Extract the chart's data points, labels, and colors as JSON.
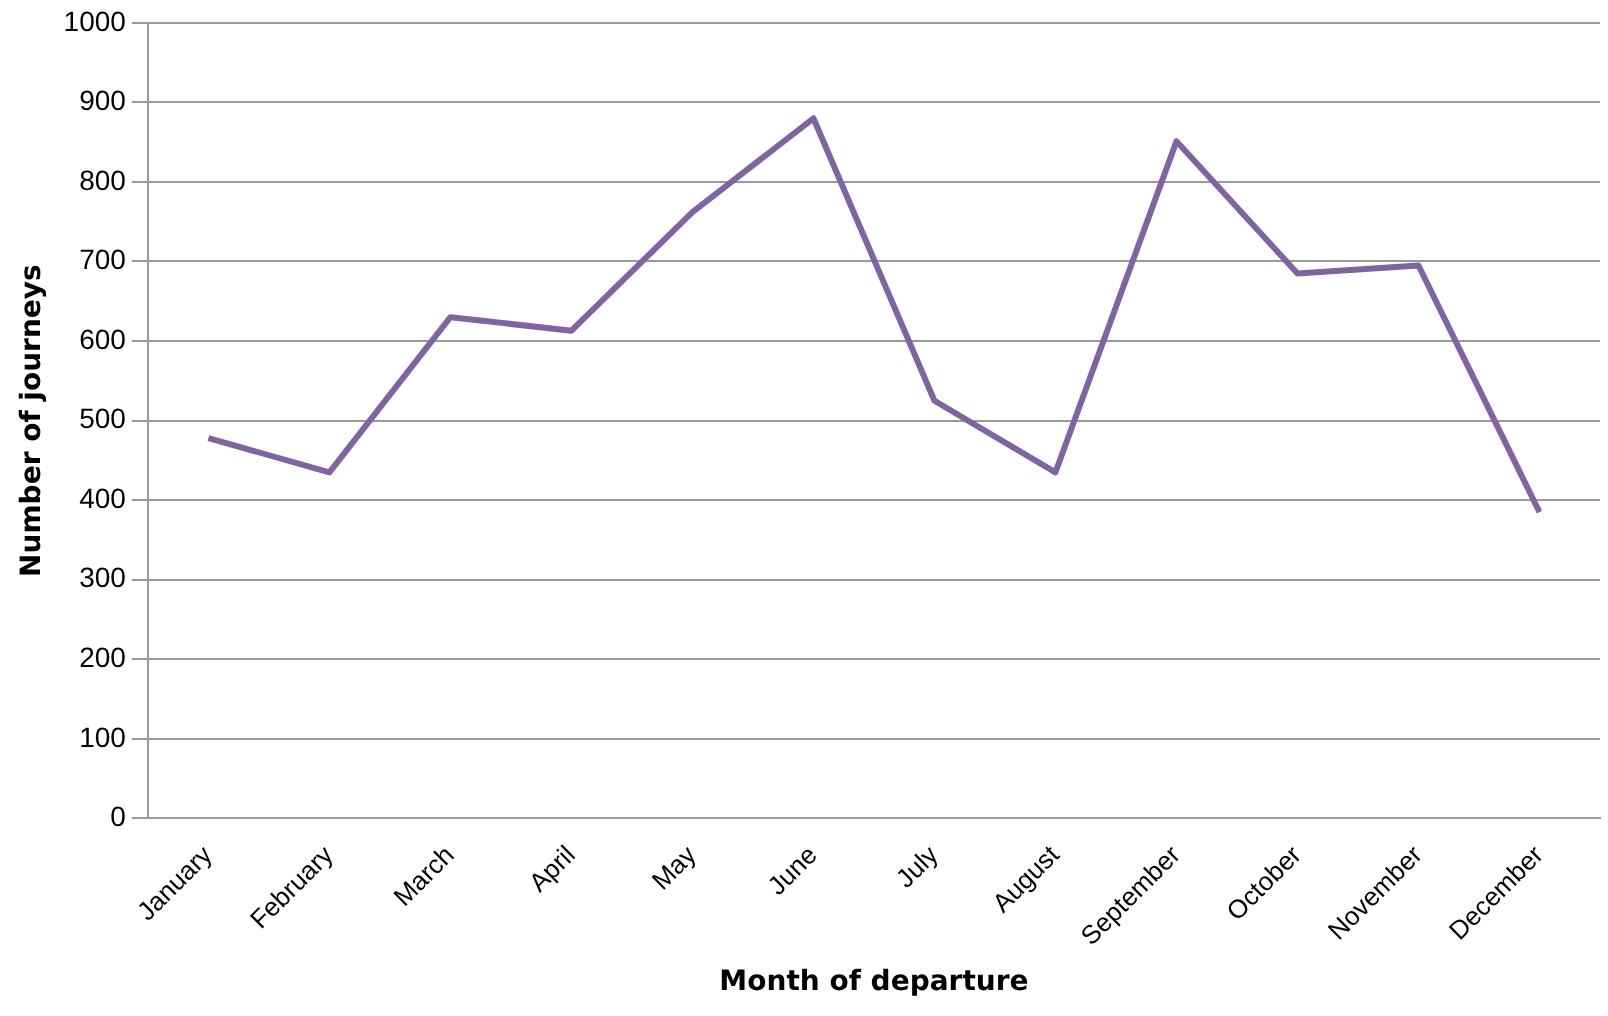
{
  "chart_data": {
    "type": "line",
    "xlabel": "Month of departure",
    "ylabel": "Number of journeys",
    "categories": [
      "January",
      "February",
      "March",
      "April",
      "May",
      "June",
      "July",
      "August",
      "September",
      "October",
      "November",
      "December"
    ],
    "series": [
      {
        "color": "#8064a2",
        "values": [
          478,
          435,
          630,
          613,
          762,
          880,
          525,
          435,
          851,
          685,
          695,
          385
        ]
      }
    ],
    "ylim": [
      0,
      1000
    ],
    "yticks": [
      0,
      100,
      200,
      300,
      400,
      500,
      600,
      700,
      800,
      900,
      1000
    ],
    "grid": "y",
    "legend": false,
    "marker": "none",
    "line_style": "solid"
  }
}
